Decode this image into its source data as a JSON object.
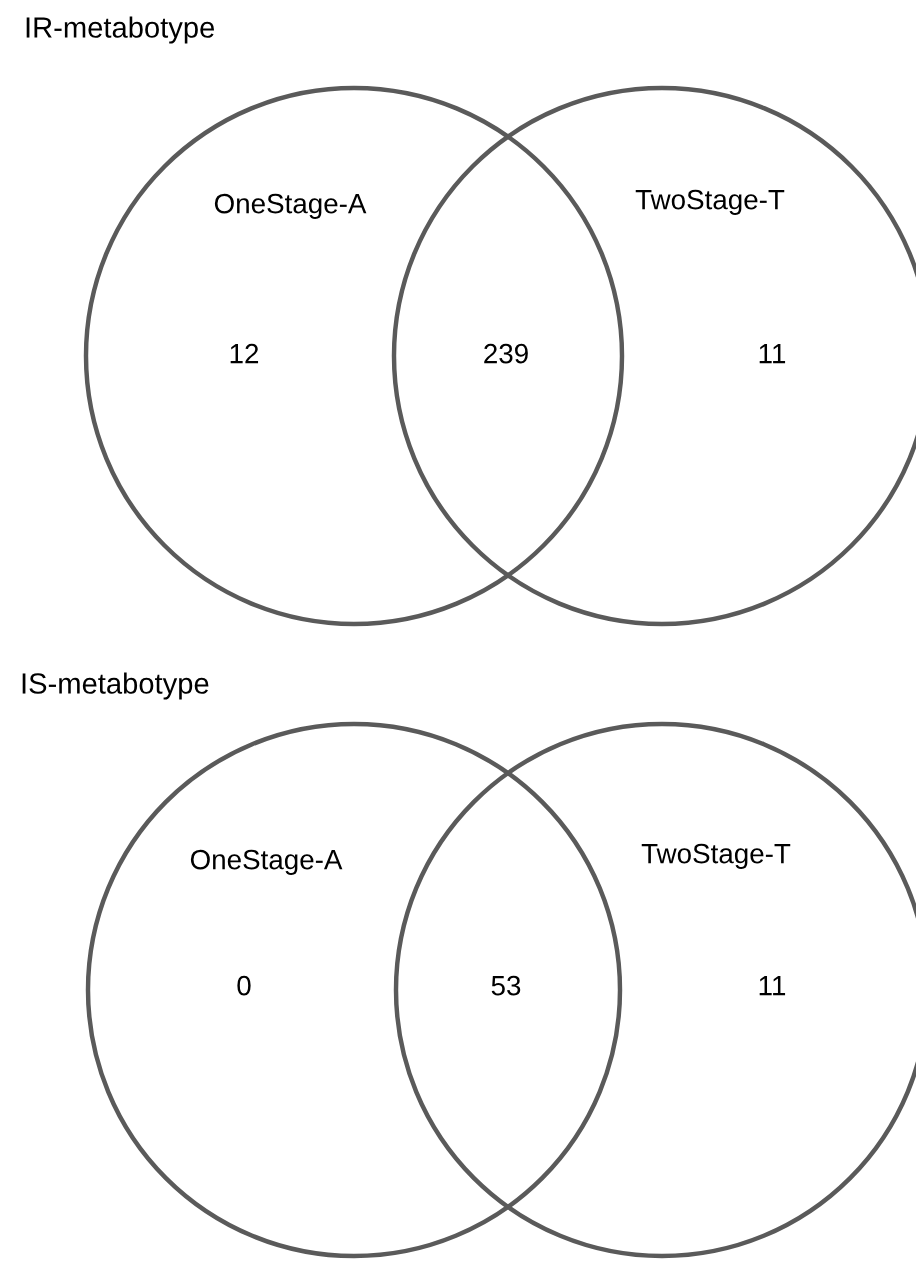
{
  "chart_data": [
    {
      "type": "other",
      "title": "IR-metabotype",
      "categories": [
        "OneStage-A",
        null,
        "TwoStage-T"
      ],
      "values": [
        12,
        239,
        11
      ],
      "data_labels": true,
      "color": "#5a5a5a"
    },
    {
      "type": "other",
      "title": "IS-metabotype",
      "categories": [
        "OneStage-A",
        null,
        "TwoStage-T"
      ],
      "values": [
        0,
        53,
        11
      ],
      "data_labels": true,
      "color": "#5a5a5a"
    }
  ]
}
